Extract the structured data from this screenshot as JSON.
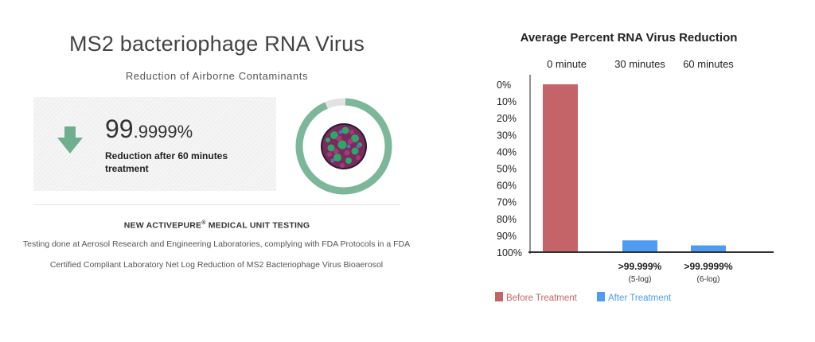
{
  "left_panel": {
    "title": "MS2 bacteriophage RNA Virus",
    "subtitle": "Reduction of Airborne Contaminants",
    "stat": {
      "value_main": "99",
      "value_decimal": ".9999%",
      "description": "Reduction after 60 minutes treatment"
    },
    "testing_heading": "NEW ACTIVEPURE",
    "testing_heading_mark": "®",
    "testing_heading_suffix": " MEDICAL UNIT TESTING",
    "testing_body": "Testing done at Aerosol Research and Engineering Laboratories, complying with FDA Protocols in a FDA Certified Compliant Laboratory Net Log Reduction of MS2 Bacteriophage Virus Bioaerosol"
  },
  "colors": {
    "accent_green": "#6fae8e",
    "ring_green": "#7db79b",
    "ring_gap": "#e2e2e2",
    "before_color": "#c46468",
    "after_color": "#4e9bf2"
  },
  "chart_data": {
    "type": "bar",
    "title": "Average Percent RNA Virus Reduction",
    "categories": [
      "0 minute",
      "30 minutes",
      "60 minutes"
    ],
    "y_ticks": [
      "0%",
      "10%",
      "20%",
      "30%",
      "40%",
      "50%",
      "60%",
      "70%",
      "80%",
      "90%",
      "100%"
    ],
    "ylim": [
      0,
      100
    ],
    "y_inverted": true,
    "series": [
      {
        "name": "Before Treatment",
        "values": [
          100,
          null,
          null
        ]
      },
      {
        "name": "After Treatment",
        "values": [
          null,
          7,
          4
        ]
      }
    ],
    "bar_labels": [
      {
        "category_index": 1,
        "label": ">99.999%",
        "sublabel": "(5-log)"
      },
      {
        "category_index": 2,
        "label": ">99.9999%",
        "sublabel": "(6-log)"
      }
    ],
    "legend": {
      "placement": "bottom-left",
      "items": [
        "Before Treatment",
        "After Treatment"
      ]
    }
  }
}
